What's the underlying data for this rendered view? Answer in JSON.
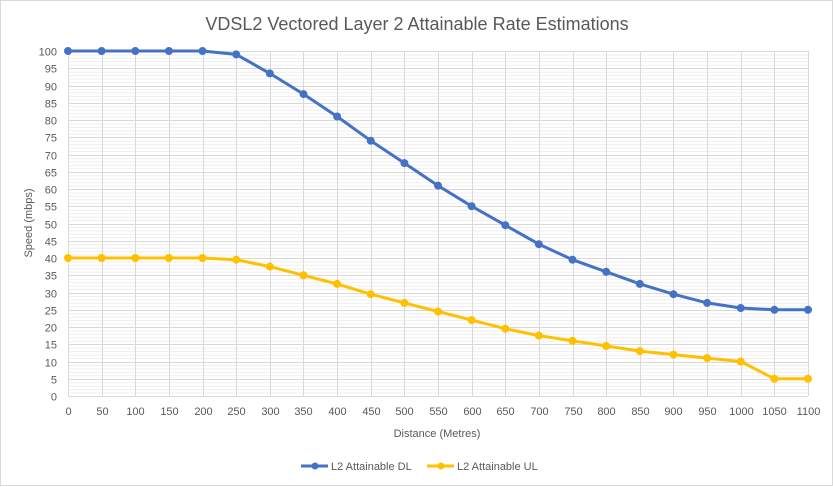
{
  "chart_data": {
    "type": "line",
    "title": "VDSL2 Vectored Layer 2 Attainable Rate Estimations",
    "xlabel": "Distance (Metres)",
    "ylabel": "Speed (mbps)",
    "x": [
      0,
      50,
      100,
      150,
      200,
      250,
      300,
      350,
      400,
      450,
      500,
      550,
      600,
      650,
      700,
      750,
      800,
      850,
      900,
      950,
      1000,
      1050,
      1100
    ],
    "x_tick_labels": [
      "0",
      "50",
      "100",
      "150",
      "200",
      "250",
      "300",
      "350",
      "400",
      "450",
      "500",
      "550",
      "600",
      "650",
      "700",
      "750",
      "800",
      "850",
      "900",
      "950",
      "1000",
      "1050",
      "1100"
    ],
    "y_tick_labels": [
      "0",
      "5",
      "10",
      "15",
      "20",
      "25",
      "30",
      "35",
      "40",
      "45",
      "50",
      "55",
      "60",
      "65",
      "70",
      "75",
      "80",
      "85",
      "90",
      "95",
      "100"
    ],
    "xlim": [
      0,
      1100
    ],
    "ylim": [
      0,
      100
    ],
    "y_major_step": 5,
    "y_minor_step": 1,
    "grid": true,
    "legend_position": "bottom",
    "series": [
      {
        "name": "L2 Attainable DL",
        "color": "#4472c4",
        "values": [
          100,
          100,
          100,
          100,
          100,
          99,
          93.5,
          87.5,
          81,
          74,
          67.5,
          61,
          55,
          49.5,
          44,
          39.5,
          36,
          32.5,
          29.5,
          27,
          25.5,
          25,
          25
        ]
      },
      {
        "name": "L2 Attainable UL",
        "color": "#ffc000",
        "values": [
          40,
          40,
          40,
          40,
          40,
          39.5,
          37.5,
          35,
          32.5,
          29.5,
          27,
          24.5,
          22,
          19.5,
          17.5,
          16,
          14.5,
          13,
          12,
          11,
          10,
          5,
          5
        ]
      }
    ]
  }
}
